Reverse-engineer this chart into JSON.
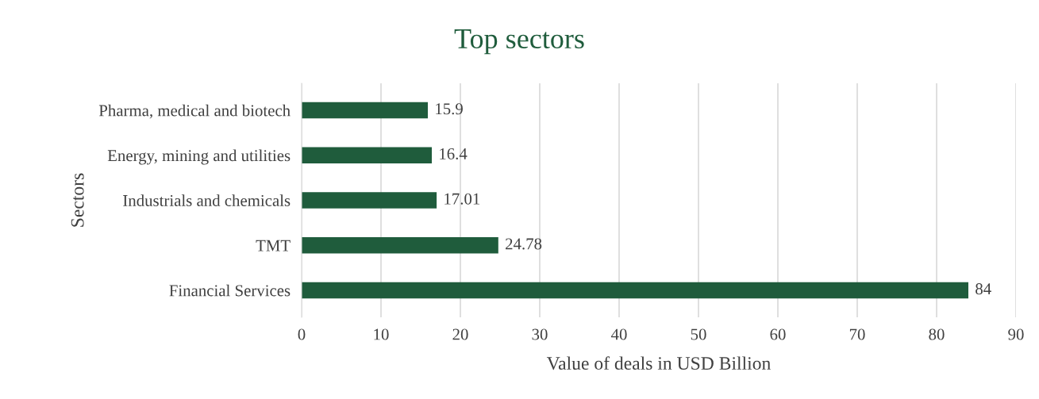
{
  "chart_data": {
    "type": "bar",
    "orientation": "horizontal",
    "title": "Top sectors",
    "xlabel": "Value of deals in USD Billion",
    "ylabel": "Sectors",
    "categories": [
      "Pharma, medical and biotech",
      "Energy, mining and utilities",
      "Industrials and chemicals",
      "TMT",
      "Financial Services"
    ],
    "series": [
      {
        "color": "#1f5c3c",
        "values": [
          15.9,
          16.4,
          17.01,
          24.78,
          84
        ]
      }
    ],
    "value_labels": [
      "15.9",
      "16.4",
      "17.01",
      "24.78",
      "84"
    ],
    "xlim": [
      0,
      90
    ],
    "xticks": [
      0,
      10,
      20,
      30,
      40,
      50,
      60,
      70,
      80,
      90
    ],
    "grid": "x"
  }
}
